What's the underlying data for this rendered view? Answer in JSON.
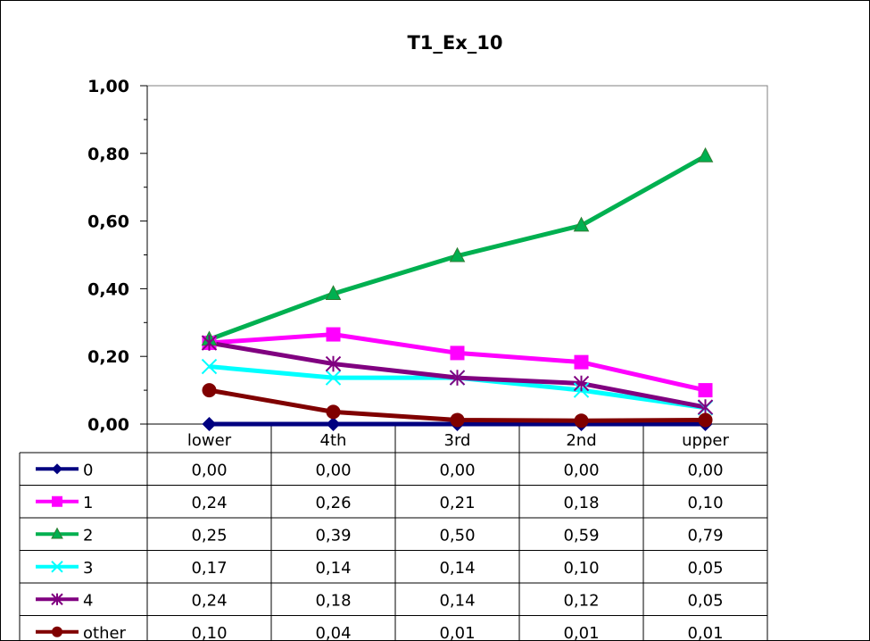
{
  "chart_data": {
    "type": "line",
    "title": "T1_Ex_10",
    "categories": [
      "lower",
      "4th",
      "3rd",
      "2nd",
      "upper"
    ],
    "ylim": [
      0,
      1.0
    ],
    "y_ticks": [
      "0,00",
      "0,20",
      "0,40",
      "0,60",
      "0,80",
      "1,00"
    ],
    "legend_placement": "data-table",
    "grid": false,
    "series": [
      {
        "name": "0",
        "color": "#000080",
        "marker": "diamond",
        "values": [
          0.0,
          0.0,
          0.0,
          0.0,
          0.0
        ],
        "labels": [
          "0,00",
          "0,00",
          "0,00",
          "0,00",
          "0,00"
        ]
      },
      {
        "name": "1",
        "color": "#ff00ff",
        "marker": "square",
        "values": [
          0.24,
          0.265,
          0.21,
          0.183,
          0.1
        ],
        "labels": [
          "0,24",
          "0,26",
          "0,21",
          "0,18",
          "0,10"
        ]
      },
      {
        "name": "2",
        "color": "#00b050",
        "marker": "triangle",
        "values": [
          0.25,
          0.385,
          0.497,
          0.587,
          0.792
        ],
        "labels": [
          "0,25",
          "0,39",
          "0,50",
          "0,59",
          "0,79"
        ]
      },
      {
        "name": "3",
        "color": "#00ffff",
        "marker": "x",
        "values": [
          0.17,
          0.137,
          0.137,
          0.1,
          0.048
        ],
        "labels": [
          "0,17",
          "0,14",
          "0,14",
          "0,10",
          "0,05"
        ]
      },
      {
        "name": "4",
        "color": "#800080",
        "marker": "star",
        "values": [
          0.24,
          0.178,
          0.137,
          0.12,
          0.05
        ],
        "labels": [
          "0,24",
          "0,18",
          "0,14",
          "0,12",
          "0,05"
        ]
      },
      {
        "name": "other",
        "color": "#800000",
        "marker": "circle",
        "values": [
          0.1,
          0.036,
          0.012,
          0.01,
          0.012
        ],
        "labels": [
          "0,10",
          "0,04",
          "0,01",
          "0,01",
          "0,01"
        ]
      }
    ]
  }
}
